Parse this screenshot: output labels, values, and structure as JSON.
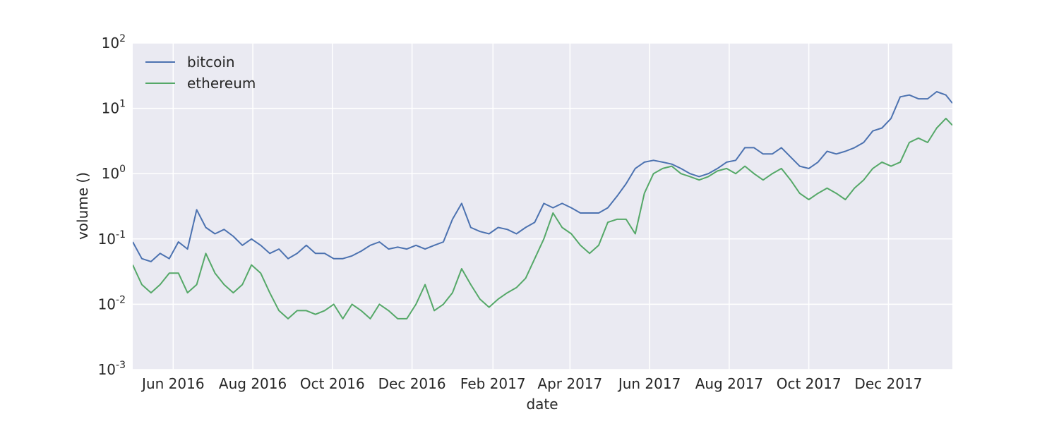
{
  "chart_data": {
    "type": "line",
    "title": "",
    "xlabel": "date",
    "ylabel": "volume    ()",
    "y_scale": "log",
    "ylim": [
      0.001,
      100
    ],
    "xlim": [
      "2016-05-01",
      "2018-01-19"
    ],
    "y_ticks": [
      {
        "value": 0.001,
        "base": "10",
        "exp": "-3"
      },
      {
        "value": 0.01,
        "base": "10",
        "exp": "-2"
      },
      {
        "value": 0.1,
        "base": "10",
        "exp": "-1"
      },
      {
        "value": 1,
        "base": "10",
        "exp": "0"
      },
      {
        "value": 10,
        "base": "10",
        "exp": "1"
      },
      {
        "value": 100,
        "base": "10",
        "exp": "2"
      }
    ],
    "x_ticks": [
      {
        "date": "2016-06-01",
        "label": "Jun 2016"
      },
      {
        "date": "2016-08-01",
        "label": "Aug 2016"
      },
      {
        "date": "2016-10-01",
        "label": "Oct 2016"
      },
      {
        "date": "2016-12-01",
        "label": "Dec 2016"
      },
      {
        "date": "2017-02-01",
        "label": "Feb 2017"
      },
      {
        "date": "2017-04-01",
        "label": "Apr 2017"
      },
      {
        "date": "2017-06-01",
        "label": "Jun 2017"
      },
      {
        "date": "2017-08-01",
        "label": "Aug 2017"
      },
      {
        "date": "2017-10-01",
        "label": "Oct 2017"
      },
      {
        "date": "2017-12-01",
        "label": "Dec 2017"
      }
    ],
    "grid": true,
    "legend_position": "top-left",
    "series": [
      {
        "name": "bitcoin",
        "color": "#4c72b0",
        "points": [
          [
            "2016-05-01",
            0.09
          ],
          [
            "2016-05-08",
            0.05
          ],
          [
            "2016-05-15",
            0.045
          ],
          [
            "2016-05-22",
            0.06
          ],
          [
            "2016-05-29",
            0.05
          ],
          [
            "2016-06-05",
            0.09
          ],
          [
            "2016-06-12",
            0.07
          ],
          [
            "2016-06-19",
            0.28
          ],
          [
            "2016-06-26",
            0.15
          ],
          [
            "2016-07-03",
            0.12
          ],
          [
            "2016-07-10",
            0.14
          ],
          [
            "2016-07-17",
            0.11
          ],
          [
            "2016-07-24",
            0.08
          ],
          [
            "2016-07-31",
            0.1
          ],
          [
            "2016-08-07",
            0.08
          ],
          [
            "2016-08-14",
            0.06
          ],
          [
            "2016-08-21",
            0.07
          ],
          [
            "2016-08-28",
            0.05
          ],
          [
            "2016-09-04",
            0.06
          ],
          [
            "2016-09-11",
            0.08
          ],
          [
            "2016-09-18",
            0.06
          ],
          [
            "2016-09-25",
            0.06
          ],
          [
            "2016-10-02",
            0.05
          ],
          [
            "2016-10-09",
            0.05
          ],
          [
            "2016-10-16",
            0.055
          ],
          [
            "2016-10-23",
            0.065
          ],
          [
            "2016-10-30",
            0.08
          ],
          [
            "2016-11-06",
            0.09
          ],
          [
            "2016-11-13",
            0.07
          ],
          [
            "2016-11-20",
            0.075
          ],
          [
            "2016-11-27",
            0.07
          ],
          [
            "2016-12-04",
            0.08
          ],
          [
            "2016-12-11",
            0.07
          ],
          [
            "2016-12-18",
            0.08
          ],
          [
            "2016-12-25",
            0.09
          ],
          [
            "2017-01-01",
            0.2
          ],
          [
            "2017-01-08",
            0.35
          ],
          [
            "2017-01-15",
            0.15
          ],
          [
            "2017-01-22",
            0.13
          ],
          [
            "2017-01-29",
            0.12
          ],
          [
            "2017-02-05",
            0.15
          ],
          [
            "2017-02-12",
            0.14
          ],
          [
            "2017-02-19",
            0.12
          ],
          [
            "2017-02-26",
            0.15
          ],
          [
            "2017-03-05",
            0.18
          ],
          [
            "2017-03-12",
            0.35
          ],
          [
            "2017-03-19",
            0.3
          ],
          [
            "2017-03-26",
            0.35
          ],
          [
            "2017-04-02",
            0.3
          ],
          [
            "2017-04-09",
            0.25
          ],
          [
            "2017-04-16",
            0.25
          ],
          [
            "2017-04-23",
            0.25
          ],
          [
            "2017-04-30",
            0.3
          ],
          [
            "2017-05-07",
            0.45
          ],
          [
            "2017-05-14",
            0.7
          ],
          [
            "2017-05-21",
            1.2
          ],
          [
            "2017-05-28",
            1.5
          ],
          [
            "2017-06-04",
            1.6
          ],
          [
            "2017-06-11",
            1.5
          ],
          [
            "2017-06-18",
            1.4
          ],
          [
            "2017-06-25",
            1.2
          ],
          [
            "2017-07-02",
            1.0
          ],
          [
            "2017-07-09",
            0.9
          ],
          [
            "2017-07-16",
            1.0
          ],
          [
            "2017-07-23",
            1.2
          ],
          [
            "2017-07-30",
            1.5
          ],
          [
            "2017-08-06",
            1.6
          ],
          [
            "2017-08-13",
            2.5
          ],
          [
            "2017-08-20",
            2.5
          ],
          [
            "2017-08-27",
            2.0
          ],
          [
            "2017-09-03",
            2.0
          ],
          [
            "2017-09-10",
            2.5
          ],
          [
            "2017-09-17",
            1.8
          ],
          [
            "2017-09-24",
            1.3
          ],
          [
            "2017-10-01",
            1.2
          ],
          [
            "2017-10-08",
            1.5
          ],
          [
            "2017-10-15",
            2.2
          ],
          [
            "2017-10-22",
            2.0
          ],
          [
            "2017-10-29",
            2.2
          ],
          [
            "2017-11-05",
            2.5
          ],
          [
            "2017-11-12",
            3.0
          ],
          [
            "2017-11-19",
            4.5
          ],
          [
            "2017-11-26",
            5.0
          ],
          [
            "2017-12-03",
            7.0
          ],
          [
            "2017-12-10",
            15.0
          ],
          [
            "2017-12-17",
            16.0
          ],
          [
            "2017-12-24",
            14.0
          ],
          [
            "2017-12-31",
            14.0
          ],
          [
            "2018-01-07",
            18.0
          ],
          [
            "2018-01-14",
            16.0
          ],
          [
            "2018-01-19",
            12.0
          ]
        ]
      },
      {
        "name": "ethereum",
        "color": "#55a868",
        "points": [
          [
            "2016-05-01",
            0.04
          ],
          [
            "2016-05-08",
            0.02
          ],
          [
            "2016-05-15",
            0.015
          ],
          [
            "2016-05-22",
            0.02
          ],
          [
            "2016-05-29",
            0.03
          ],
          [
            "2016-06-05",
            0.03
          ],
          [
            "2016-06-12",
            0.015
          ],
          [
            "2016-06-19",
            0.02
          ],
          [
            "2016-06-26",
            0.06
          ],
          [
            "2016-07-03",
            0.03
          ],
          [
            "2016-07-10",
            0.02
          ],
          [
            "2016-07-17",
            0.015
          ],
          [
            "2016-07-24",
            0.02
          ],
          [
            "2016-07-31",
            0.04
          ],
          [
            "2016-08-07",
            0.03
          ],
          [
            "2016-08-14",
            0.015
          ],
          [
            "2016-08-21",
            0.008
          ],
          [
            "2016-08-28",
            0.006
          ],
          [
            "2016-09-04",
            0.008
          ],
          [
            "2016-09-11",
            0.008
          ],
          [
            "2016-09-18",
            0.007
          ],
          [
            "2016-09-25",
            0.008
          ],
          [
            "2016-10-02",
            0.01
          ],
          [
            "2016-10-09",
            0.006
          ],
          [
            "2016-10-16",
            0.01
          ],
          [
            "2016-10-23",
            0.008
          ],
          [
            "2016-10-30",
            0.006
          ],
          [
            "2016-11-06",
            0.01
          ],
          [
            "2016-11-13",
            0.008
          ],
          [
            "2016-11-20",
            0.006
          ],
          [
            "2016-11-27",
            0.006
          ],
          [
            "2016-12-04",
            0.01
          ],
          [
            "2016-12-11",
            0.02
          ],
          [
            "2016-12-18",
            0.008
          ],
          [
            "2016-12-25",
            0.01
          ],
          [
            "2017-01-01",
            0.015
          ],
          [
            "2017-01-08",
            0.035
          ],
          [
            "2017-01-15",
            0.02
          ],
          [
            "2017-01-22",
            0.012
          ],
          [
            "2017-01-29",
            0.009
          ],
          [
            "2017-02-05",
            0.012
          ],
          [
            "2017-02-12",
            0.015
          ],
          [
            "2017-02-19",
            0.018
          ],
          [
            "2017-02-26",
            0.025
          ],
          [
            "2017-03-05",
            0.05
          ],
          [
            "2017-03-12",
            0.1
          ],
          [
            "2017-03-19",
            0.25
          ],
          [
            "2017-03-26",
            0.15
          ],
          [
            "2017-04-02",
            0.12
          ],
          [
            "2017-04-09",
            0.08
          ],
          [
            "2017-04-16",
            0.06
          ],
          [
            "2017-04-23",
            0.08
          ],
          [
            "2017-04-30",
            0.18
          ],
          [
            "2017-05-07",
            0.2
          ],
          [
            "2017-05-14",
            0.2
          ],
          [
            "2017-05-21",
            0.12
          ],
          [
            "2017-05-28",
            0.5
          ],
          [
            "2017-06-04",
            1.0
          ],
          [
            "2017-06-11",
            1.2
          ],
          [
            "2017-06-18",
            1.3
          ],
          [
            "2017-06-25",
            1.0
          ],
          [
            "2017-07-02",
            0.9
          ],
          [
            "2017-07-09",
            0.8
          ],
          [
            "2017-07-16",
            0.9
          ],
          [
            "2017-07-23",
            1.1
          ],
          [
            "2017-07-30",
            1.2
          ],
          [
            "2017-08-06",
            1.0
          ],
          [
            "2017-08-13",
            1.3
          ],
          [
            "2017-08-20",
            1.0
          ],
          [
            "2017-08-27",
            0.8
          ],
          [
            "2017-09-03",
            1.0
          ],
          [
            "2017-09-10",
            1.2
          ],
          [
            "2017-09-17",
            0.8
          ],
          [
            "2017-09-24",
            0.5
          ],
          [
            "2017-10-01",
            0.4
          ],
          [
            "2017-10-08",
            0.5
          ],
          [
            "2017-10-15",
            0.6
          ],
          [
            "2017-10-22",
            0.5
          ],
          [
            "2017-10-29",
            0.4
          ],
          [
            "2017-11-05",
            0.6
          ],
          [
            "2017-11-12",
            0.8
          ],
          [
            "2017-11-19",
            1.2
          ],
          [
            "2017-11-26",
            1.5
          ],
          [
            "2017-12-03",
            1.3
          ],
          [
            "2017-12-10",
            1.5
          ],
          [
            "2017-12-17",
            3.0
          ],
          [
            "2017-12-24",
            3.5
          ],
          [
            "2017-12-31",
            3.0
          ],
          [
            "2018-01-07",
            5.0
          ],
          [
            "2018-01-14",
            7.0
          ],
          [
            "2018-01-19",
            5.5
          ]
        ]
      }
    ]
  }
}
